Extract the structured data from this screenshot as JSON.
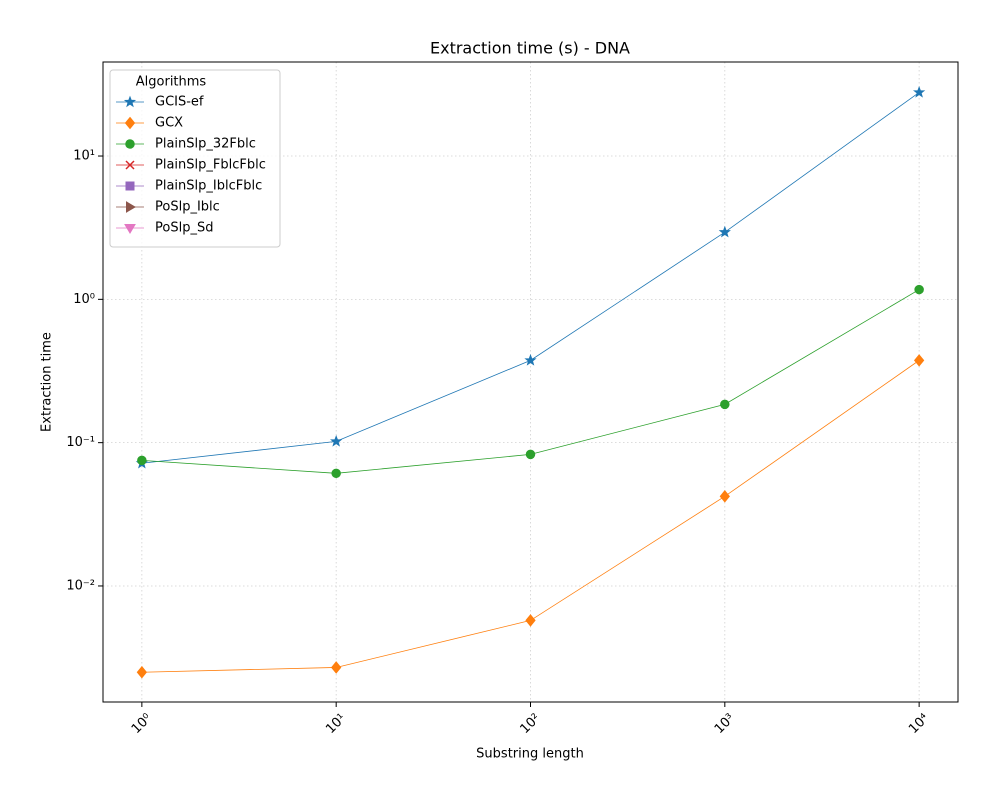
{
  "chart_data": {
    "type": "line",
    "title": "Extraction time (s) - DNA",
    "x_label": "Substring length",
    "y_label": "Extraction time",
    "legend_title": "Algorithms",
    "legend": "upper left",
    "grid": true,
    "xscale": "log",
    "yscale": "log",
    "x": [
      1,
      10,
      100,
      1000,
      10000
    ],
    "xlim": [
      0.631,
      15849
    ],
    "ylim": [
      0.00155,
      45.3
    ],
    "xticks": [
      {
        "value": 1,
        "label": "10⁰"
      },
      {
        "value": 10,
        "label": "10¹"
      },
      {
        "value": 100,
        "label": "10²"
      },
      {
        "value": 1000,
        "label": "10³"
      },
      {
        "value": 10000,
        "label": "10⁴"
      }
    ],
    "yticks": [
      {
        "value": 0.01,
        "label": "10⁻²"
      },
      {
        "value": 0.1,
        "label": "10⁻¹"
      },
      {
        "value": 1,
        "label": "10⁰"
      },
      {
        "value": 10,
        "label": "10¹"
      }
    ],
    "series": [
      {
        "name": "GCIS-ef",
        "color": "#1f77b4",
        "marker": "star",
        "values": [
          0.0718,
          0.102,
          0.375,
          2.94,
          27.8
        ]
      },
      {
        "name": "GCX",
        "color": "#ff7f0e",
        "marker": "diamond",
        "values": [
          0.0025,
          0.0027,
          0.00575,
          0.0422,
          0.375
        ]
      },
      {
        "name": "PlainSlp_32Fblc",
        "color": "#2ca02c",
        "marker": "circle",
        "values": [
          0.0752,
          0.0611,
          0.0828,
          0.185,
          1.17
        ]
      },
      {
        "name": "PlainSlp_FblcFblc",
        "color": "#d62728",
        "marker": "x",
        "values": [
          null,
          null,
          null,
          null,
          null
        ]
      },
      {
        "name": "PlainSlp_IblcFblc",
        "color": "#9467bd",
        "marker": "square",
        "values": [
          null,
          null,
          null,
          null,
          null
        ]
      },
      {
        "name": "PoSlp_Iblc",
        "color": "#8c564b",
        "marker": "triangle-right",
        "values": [
          null,
          null,
          null,
          null,
          null
        ]
      },
      {
        "name": "PoSlp_Sd",
        "color": "#e377c2",
        "marker": "triangle-down",
        "values": [
          null,
          null,
          null,
          null,
          null
        ]
      }
    ]
  }
}
